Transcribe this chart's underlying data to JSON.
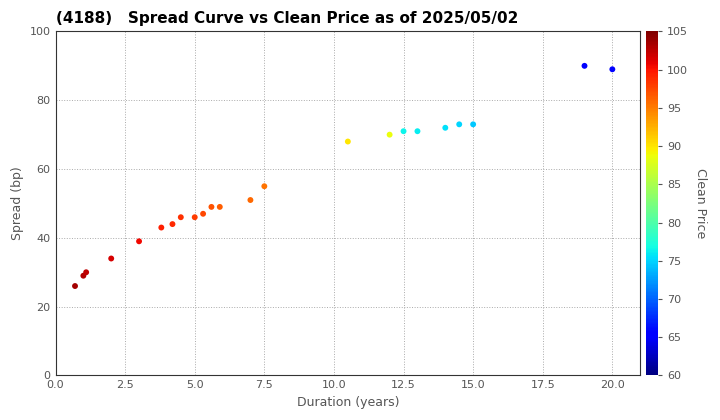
{
  "title": "(4188)   Spread Curve vs Clean Price as of 2025/05/02",
  "xlabel": "Duration (years)",
  "ylabel": "Spread (bp)",
  "colorbar_label": "Clean Price",
  "xlim": [
    0,
    21
  ],
  "ylim": [
    0,
    100
  ],
  "xticks": [
    0.0,
    2.5,
    5.0,
    7.5,
    10.0,
    12.5,
    15.0,
    17.5,
    20.0
  ],
  "yticks": [
    0,
    20,
    40,
    60,
    80,
    100
  ],
  "cmap": "jet",
  "clim": [
    60,
    105
  ],
  "cticks": [
    60,
    65,
    70,
    75,
    80,
    85,
    90,
    95,
    100,
    105
  ],
  "points": [
    {
      "duration": 0.7,
      "spread": 26,
      "price": 103.5
    },
    {
      "duration": 1.0,
      "spread": 29,
      "price": 103.0
    },
    {
      "duration": 1.1,
      "spread": 30,
      "price": 102.5
    },
    {
      "duration": 2.0,
      "spread": 34,
      "price": 101.5
    },
    {
      "duration": 3.0,
      "spread": 39,
      "price": 100.5
    },
    {
      "duration": 3.8,
      "spread": 43,
      "price": 99.5
    },
    {
      "duration": 4.2,
      "spread": 44,
      "price": 99.0
    },
    {
      "duration": 4.5,
      "spread": 46,
      "price": 98.5
    },
    {
      "duration": 5.0,
      "spread": 46,
      "price": 98.0
    },
    {
      "duration": 5.3,
      "spread": 47,
      "price": 97.5
    },
    {
      "duration": 5.6,
      "spread": 49,
      "price": 97.0
    },
    {
      "duration": 5.9,
      "spread": 49,
      "price": 96.5
    },
    {
      "duration": 7.0,
      "spread": 51,
      "price": 96.0
    },
    {
      "duration": 7.5,
      "spread": 55,
      "price": 95.5
    },
    {
      "duration": 10.5,
      "spread": 68,
      "price": 90.0
    },
    {
      "duration": 12.0,
      "spread": 70,
      "price": 88.5
    },
    {
      "duration": 12.5,
      "spread": 71,
      "price": 76.5
    },
    {
      "duration": 13.0,
      "spread": 71,
      "price": 76.0
    },
    {
      "duration": 14.0,
      "spread": 72,
      "price": 75.5
    },
    {
      "duration": 14.5,
      "spread": 73,
      "price": 75.0
    },
    {
      "duration": 15.0,
      "spread": 73,
      "price": 74.5
    },
    {
      "duration": 19.0,
      "spread": 90,
      "price": 65.5
    },
    {
      "duration": 20.0,
      "spread": 89,
      "price": 65.0
    }
  ]
}
